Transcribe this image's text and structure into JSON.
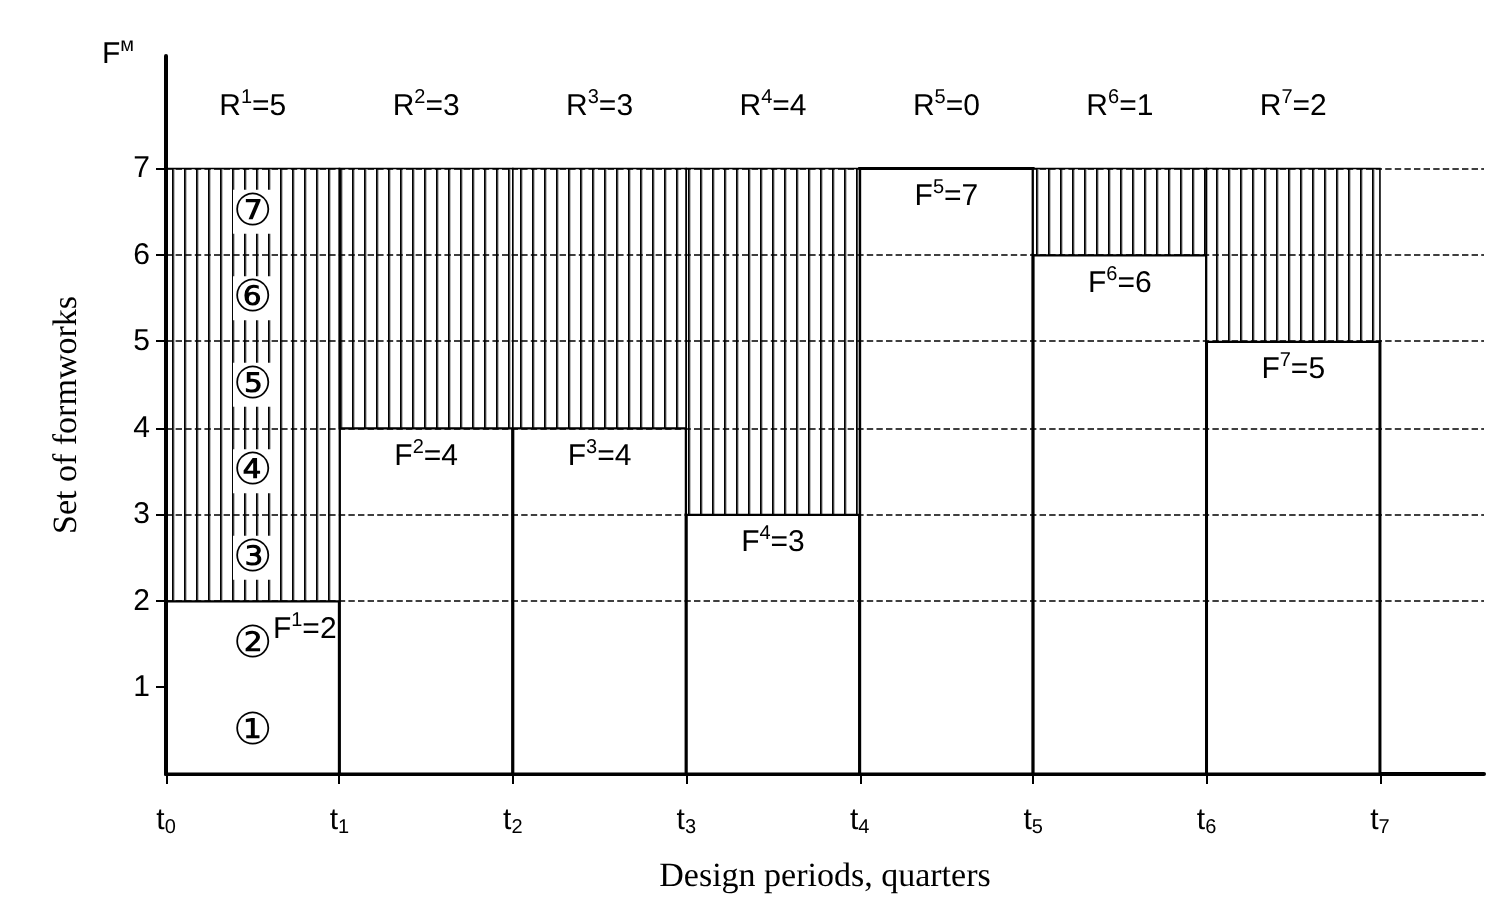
{
  "chart_data": {
    "type": "bar",
    "stacked": true,
    "xlabel": "Design periods, quarters",
    "ylabel": "Set of formworks",
    "x": [
      0.5,
      1.5,
      2.5,
      3.5,
      4.5,
      5.5,
      6.5
    ],
    "xlim": [
      0,
      7.6
    ],
    "xticks": [
      {
        "value": 0,
        "label": "t$_{0}$"
      },
      {
        "value": 1,
        "label": "t$_{1}$"
      },
      {
        "value": 2,
        "label": "t$_{2}$"
      },
      {
        "value": 3,
        "label": "t$_{3}$"
      },
      {
        "value": 4,
        "label": "t$_{4}$"
      },
      {
        "value": 5,
        "label": "t$_{5}$"
      },
      {
        "value": 6,
        "label": "t$_{6}$"
      },
      {
        "value": 7,
        "label": "t$_{7}$"
      }
    ],
    "ylim": [
      0,
      8.3
    ],
    "yticks": [
      1,
      2,
      3,
      4,
      5,
      6,
      7
    ],
    "grid": "y",
    "line_style": "dashed",
    "series": [
      {
        "color": "#ffffff",
        "values": [
          2,
          4,
          4,
          3,
          7,
          6,
          5
        ],
        "value_labels": [
          "F$^{1}$=2",
          "F$^{2}$=4",
          "F$^{3}$=4",
          "F$^{4}$=3",
          "F$^{5}$=7",
          "F$^{6}$=6",
          "F$^{7}$=5"
        ]
      },
      {
        "color": "#000000",
        "values": [
          5,
          3,
          3,
          4,
          0,
          1,
          2
        ],
        "value_labels": [
          "R$^{1}$=5",
          "R$^{2}$=3",
          "R$^{3}$=3",
          "R$^{4}$=4",
          "R$^{5}$=0",
          "R$^{6}$=1",
          "R$^{7}$=2"
        ]
      }
    ],
    "annotations": [
      "F$^{м}$",
      "①",
      "②",
      "③",
      "④",
      "⑤",
      "⑥",
      "⑦"
    ]
  }
}
